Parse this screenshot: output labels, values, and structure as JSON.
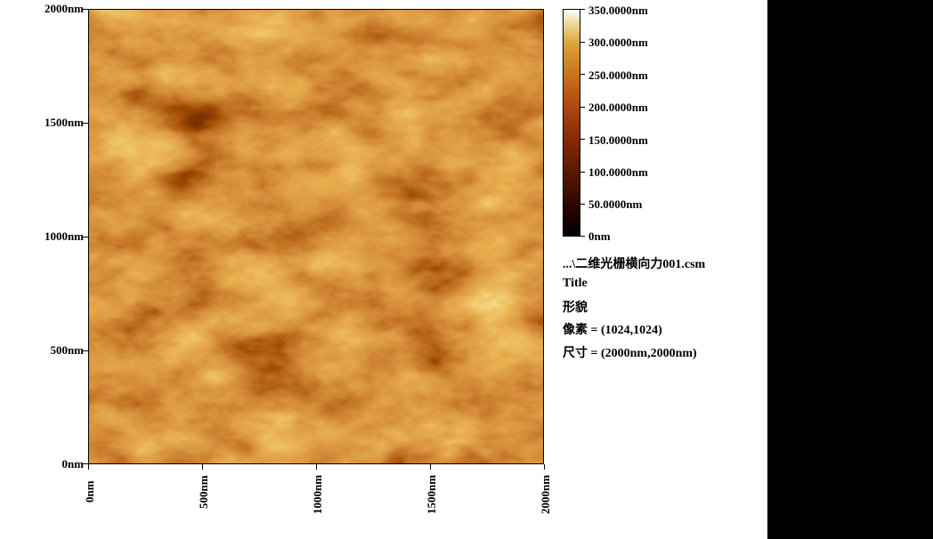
{
  "image": {
    "name": "afm-topography",
    "colors": {
      "dark": "#1a0300",
      "mid": "#8a2c05",
      "light": "#c9761e",
      "bright": "#f1dfa8"
    }
  },
  "axes": {
    "y_ticks": [
      "2000nm",
      "1500nm",
      "1000nm",
      "500nm",
      "0nm"
    ],
    "x_ticks": [
      "0nm",
      "500nm",
      "1000nm",
      "1500nm",
      "2000nm"
    ]
  },
  "colorbar": {
    "labels": [
      "350.0000nm",
      "300.0000nm",
      "250.0000nm",
      "200.0000nm",
      "150.0000nm",
      "100.0000nm",
      "50.0000nm",
      "0nm"
    ],
    "range": [
      0,
      350
    ]
  },
  "info": {
    "file": "...\\二维光栅横向力001.csm",
    "title": "Title",
    "mode": "形貌",
    "pixels": "像素 = (1024,1024)",
    "size": "尺寸 = (2000nm,2000nm)"
  }
}
